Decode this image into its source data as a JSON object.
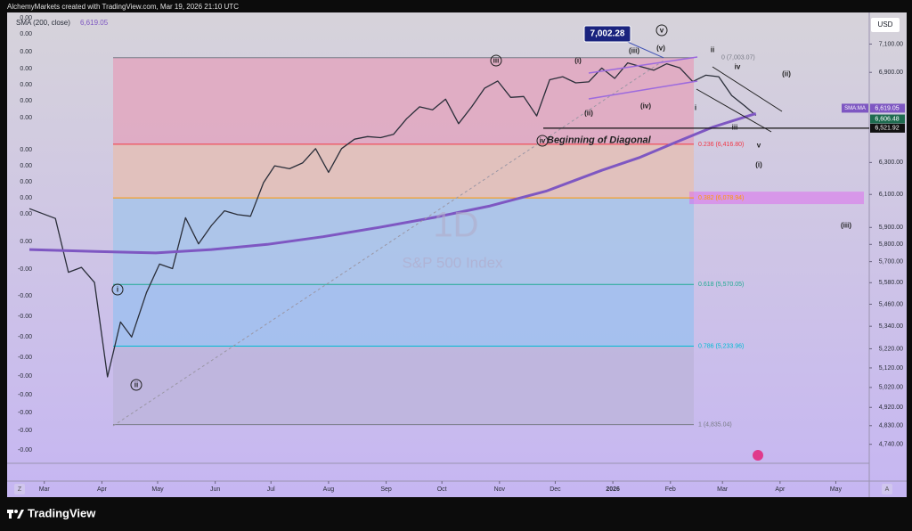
{
  "header": {
    "credit": "AlchemyMarkets created with TradingView.com, Mar 19, 2026 21:10 UTC"
  },
  "chart_data": {
    "type": "line",
    "ylog": true,
    "grid": false,
    "interval": "1D",
    "currency": "USD",
    "x": [
      -8,
      6,
      13,
      20,
      27,
      34,
      41,
      47,
      55,
      62,
      69,
      76,
      83,
      90,
      97,
      104,
      111,
      118,
      124,
      132,
      139,
      146,
      153,
      160,
      167,
      174,
      181,
      188,
      195,
      202,
      209,
      216,
      223,
      230,
      237,
      244,
      251,
      258,
      265,
      272,
      279,
      286,
      293,
      300,
      307,
      314,
      321,
      328,
      335,
      342,
      349,
      356,
      363,
      370,
      377,
      383
    ],
    "xlim": [
      -20,
      444
    ],
    "xticks": [
      {
        "value": 0,
        "label": "Mar"
      },
      {
        "value": 31,
        "label": "Apr"
      },
      {
        "value": 61,
        "label": "May"
      },
      {
        "value": 92,
        "label": "Jun"
      },
      {
        "value": 122,
        "label": "Jul"
      },
      {
        "value": 153,
        "label": "Aug"
      },
      {
        "value": 184,
        "label": "Sep"
      },
      {
        "value": 214,
        "label": "Oct"
      },
      {
        "value": 245,
        "label": "Nov"
      },
      {
        "value": 275,
        "label": "Dec"
      },
      {
        "value": 306,
        "label": "2026"
      },
      {
        "value": 337,
        "label": "Feb"
      },
      {
        "value": 365,
        "label": "Mar"
      },
      {
        "value": 396,
        "label": "Apr"
      },
      {
        "value": 426,
        "label": "May"
      }
    ],
    "ylim": [
      4650,
      7330
    ],
    "yticks": [
      {
        "value": 7100,
        "label": "7,100.00"
      },
      {
        "value": 6900,
        "label": "6,900.00"
      },
      {
        "value": 6300,
        "label": "6,300.00"
      },
      {
        "value": 6100,
        "label": "6,100.00"
      },
      {
        "value": 5900,
        "label": "5,900.00"
      },
      {
        "value": 5800,
        "label": "5,800.00"
      },
      {
        "value": 5700,
        "label": "5,700.00"
      },
      {
        "value": 5580,
        "label": "5,580.00"
      },
      {
        "value": 5460,
        "label": "5,460.00"
      },
      {
        "value": 5340,
        "label": "5,340.00"
      },
      {
        "value": 5220,
        "label": "5,220.00"
      },
      {
        "value": 5120,
        "label": "5,120.00"
      },
      {
        "value": 5020,
        "label": "5,020.00"
      },
      {
        "value": 4920,
        "label": "4,920.00"
      },
      {
        "value": 4830,
        "label": "4,830.00"
      },
      {
        "value": 4740,
        "label": "4,740.00"
      }
    ],
    "series": [
      {
        "name": "S&P 500 Index",
        "color": "#2a2e39",
        "values": [
          6013,
          5954,
          5639,
          5667,
          5581,
          5074,
          5363,
          5282,
          5525,
          5686,
          5660,
          5958,
          5803,
          5912,
          6000,
          5977,
          5967,
          6173,
          6279,
          6260,
          6297,
          6389,
          6238,
          6389,
          6450,
          6467,
          6460,
          6482,
          6584,
          6664,
          6644,
          6716,
          6552,
          6664,
          6791,
          6840,
          6728,
          6734,
          6603,
          6849,
          6870,
          6827,
          6834,
          6930,
          6858,
          6966,
          6940,
          6915,
          6960,
          6932,
          6836,
          6880,
          6870,
          6740,
          6670,
          6606.48
        ],
        "last_label": "6,606.48",
        "label_color": "#1e6b4f"
      },
      {
        "name": "SMA (200, close)",
        "color": "#7e57c2",
        "x": [
          -8,
          30,
          60,
          90,
          120,
          150,
          180,
          210,
          240,
          270,
          300,
          320,
          340,
          360,
          383
        ],
        "values": [
          5770,
          5758,
          5750,
          5770,
          5800,
          5845,
          5900,
          5960,
          6030,
          6120,
          6250,
          6330,
          6430,
          6530,
          6619.05
        ],
        "last_label": "6,619.05",
        "tag": "SMA:MA"
      }
    ],
    "fib": [
      {
        "label": "0 (7,003.07)",
        "price": 7003.07,
        "color": "#787b86"
      },
      {
        "label": "0.236 (6,416.80)",
        "price": 6416.8,
        "color": "#f23645",
        "zone_color": "#e2a7bf"
      },
      {
        "label": "0.382 (6,078.94)",
        "price": 6078.94,
        "color": "#ff9800",
        "zone_color": "#e4c0b6"
      },
      {
        "label": "0.618 (5,570.05)",
        "price": 5570.05,
        "color": "#22ab94",
        "zone_color": "#a7c4ea"
      },
      {
        "label": "0.786 (5,233.96)",
        "price": 5233.96,
        "color": "#00bcd4",
        "zone_color": "#9fc0ee"
      },
      {
        "label": "1 (4,835.04)",
        "price": 4835.04,
        "color": "#787b86",
        "zone_color": "#bdb5dc"
      }
    ],
    "levels": [
      {
        "price": 6521.92,
        "label": "6,521.92"
      }
    ],
    "callout": {
      "label": "7,002.28",
      "price": 7002.28
    },
    "wave_labels": [
      "iii",
      "(i)",
      "(iii)",
      "(v)",
      "v",
      "ii",
      "iv",
      "(ii)",
      "(ii)",
      "(iv)",
      "i",
      "iv",
      "Beginning of Diagonal",
      "iii",
      "v",
      "(i)",
      "(iii)",
      "i",
      "ii"
    ],
    "left_axis_labels": [
      "0.00",
      "0.00",
      "0.00",
      "0.00",
      "0.00",
      "0.00",
      "0.00",
      "0.00",
      "0.00",
      "0.00",
      "0.00",
      "0.00",
      "0.00",
      "-0.00",
      "-0.00",
      "-0.00",
      "-0.00",
      "-0.00",
      "-0.00",
      "-0.00",
      "-0.00",
      "-0.00",
      "-0.00"
    ]
  },
  "footer": {
    "brand": "TradingView"
  }
}
